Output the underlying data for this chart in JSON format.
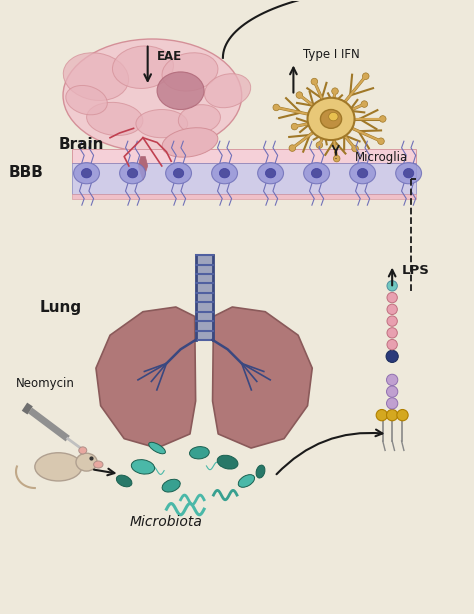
{
  "background_color": "#eee9db",
  "labels": {
    "brain": "Brain",
    "bbb": "BBB",
    "lung": "Lung",
    "eae": "EAE",
    "type_i_ifn": "Type I IFN",
    "microglia": "Microglia",
    "lps": "LPS",
    "neomycin": "Neomycin",
    "microbiota": "Microbiota"
  },
  "colors": {
    "brain_fill": "#e8b4bc",
    "brain_light": "#f0ccd0",
    "brain_mid": "#d49098",
    "brain_dark": "#b06878",
    "brain_red": "#8b2020",
    "brain_vessel": "#c04050",
    "lung_fill": "#b07878",
    "lung_dark": "#8a5a5a",
    "lung_light": "#c89090",
    "airway": "#5060a0",
    "airway_dark": "#3a4880",
    "bbb_pink_top": "#f5d0d8",
    "bbb_pink_bot": "#f0c0c8",
    "bbb_lavender": "#d0cce8",
    "bbb_cell_fill": "#9898d8",
    "bbb_cell_edge": "#7070b8",
    "bbb_cell_nucleus": "#5050a0",
    "neuron_fill": "#d4a855",
    "neuron_light": "#e8c878",
    "neuron_dark": "#a07828",
    "neuron_nucleus": "#c09040",
    "microbiota_teal": "#4ab8a8",
    "microbiota_mid": "#38a090",
    "microbiota_dark": "#287868",
    "text_dark": "#1a1a1a",
    "arrow_color": "#1a1a1a",
    "lps_pink": "#e8a0b0",
    "lps_teal": "#70c8c0",
    "lps_navy": "#2a3a7a",
    "lps_gold": "#d4a820",
    "lps_purple": "#c0a0d0",
    "mouse_fur": "#d8c8b0",
    "mouse_pink": "#e8a8a0",
    "syringe_gray": "#909090",
    "syringe_needle": "#c0c0c0"
  },
  "figsize": [
    4.74,
    6.14
  ],
  "dpi": 100
}
